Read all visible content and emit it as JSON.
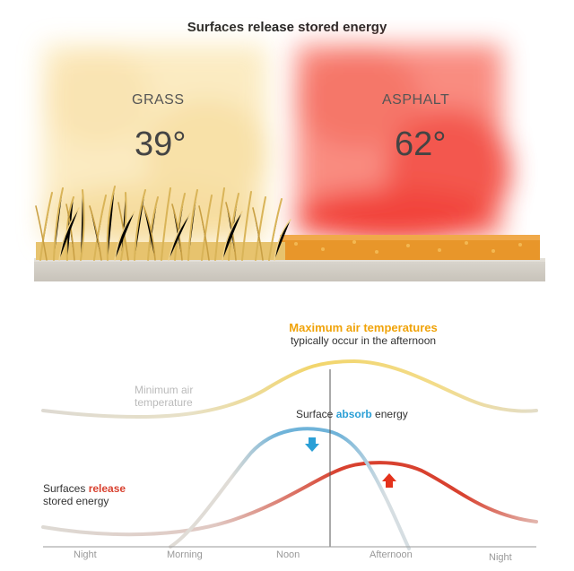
{
  "title": "Surfaces release stored energy",
  "surfaces": [
    {
      "name": "GRASS",
      "temperature": "39°"
    },
    {
      "name": "ASPHALT",
      "temperature": "62°"
    }
  ],
  "annotations": {
    "max_air_title": "Maximum air temperatures",
    "max_air_sub": "typically occur in the afternoon",
    "min_air": "Minimum air temperature",
    "absorb_pre": "Surface ",
    "absorb_key": "absorb",
    "absorb_post": " energy",
    "release_pre": "Surfaces ",
    "release_key": "release",
    "release_post": "stored energy"
  },
  "axis_labels": [
    "Night",
    "Morning",
    "Noon",
    "Afternoon",
    "Night"
  ],
  "colors": {
    "air_temperature": "#f2d56b",
    "absorb": "#6fb3d9",
    "release": "#d8412f",
    "absorb_arrow": "#2a9fd6",
    "release_arrow": "#e4321c",
    "max_label": "#f0a30a"
  },
  "icons": {
    "absorb": "down-arrow-icon",
    "release": "up-arrow-icon"
  }
}
